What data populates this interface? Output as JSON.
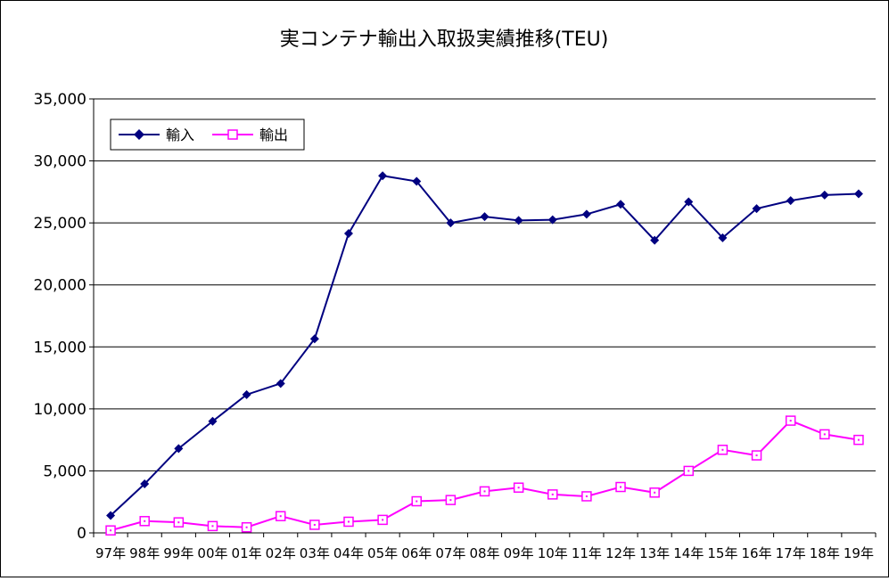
{
  "chart_data": {
    "type": "line",
    "title": "実コンテナ輸出入取扱実績推移(TEU)",
    "xlabel": "",
    "ylabel": "",
    "ylim": [
      0,
      35000
    ],
    "y_ticks": [
      "0",
      "5,000",
      "10,000",
      "15,000",
      "20,000",
      "25,000",
      "30,000",
      "35,000"
    ],
    "y_tick_values": [
      0,
      5000,
      10000,
      15000,
      20000,
      25000,
      30000,
      35000
    ],
    "grid": true,
    "legend_position": "top-left",
    "categories": [
      "97年",
      "98年",
      "99年",
      "00年",
      "01年",
      "02年",
      "03年",
      "04年",
      "05年",
      "06年",
      "07年",
      "08年",
      "09年",
      "10年",
      "11年",
      "12年",
      "13年",
      "14年",
      "15年",
      "16年",
      "17年",
      "18年",
      "19年"
    ],
    "series": [
      {
        "name": "輸入",
        "color": "#000080",
        "marker": "diamond",
        "values": [
          1400,
          3950,
          6800,
          9000,
          11150,
          12050,
          15650,
          24150,
          28800,
          28350,
          25000,
          25500,
          25200,
          25250,
          25700,
          26500,
          23600,
          26700,
          23800,
          26150,
          26800,
          27250,
          27350
        ]
      },
      {
        "name": "輸出",
        "color": "#ff00ff",
        "marker": "square",
        "values": [
          200,
          950,
          850,
          550,
          450,
          1350,
          650,
          900,
          1050,
          2550,
          2650,
          3350,
          3650,
          3100,
          2950,
          3700,
          3250,
          5000,
          6700,
          6250,
          9050,
          7950,
          7500
        ]
      }
    ]
  }
}
